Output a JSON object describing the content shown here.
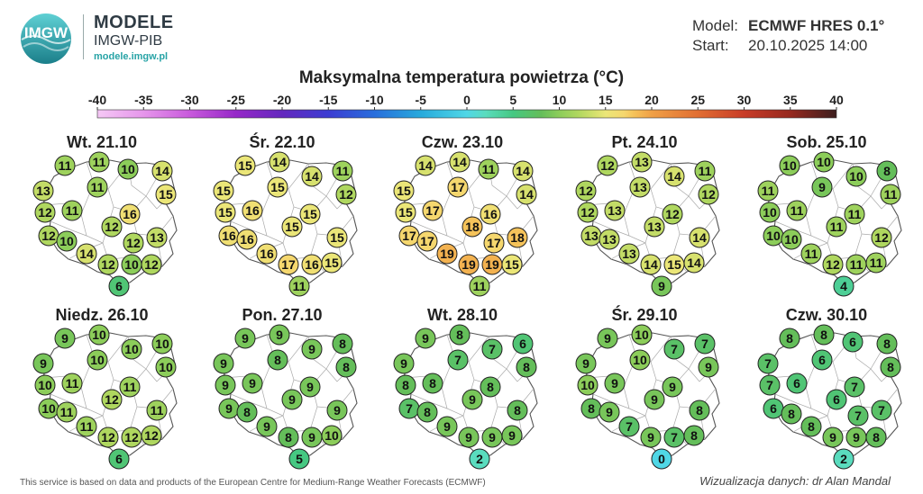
{
  "header": {
    "logo_text": "IMGW",
    "brand_title": "MODELE",
    "brand_org": "IMGW-PIB",
    "brand_url": "modele.imgw.pl",
    "model_label": "Model:",
    "model_value": "ECMWF HRES 0.1°",
    "start_label": "Start:",
    "start_value": "20.10.2025 14:00"
  },
  "title": "Maksymalna temperatura powietrza (°C)",
  "scale": {
    "ticks": [
      "-40",
      "-35",
      "-30",
      "-25",
      "-20",
      "-15",
      "-10",
      "-5",
      "0",
      "5",
      "10",
      "15",
      "20",
      "25",
      "30",
      "35",
      "40"
    ]
  },
  "panels": [
    {
      "date": "Wt. 21.10",
      "values": [
        11,
        11,
        10,
        14,
        13,
        11,
        15,
        12,
        11,
        16,
        12,
        12,
        13,
        10,
        12,
        14,
        12,
        10,
        12,
        6
      ]
    },
    {
      "date": "Śr. 22.10",
      "values": [
        15,
        14,
        11,
        15,
        15,
        14,
        12,
        15,
        16,
        15,
        16,
        16,
        15,
        15,
        16,
        17,
        16,
        15,
        11
      ]
    },
    {
      "date": "Czw. 23.10",
      "values": [
        14,
        14,
        11,
        14,
        15,
        17,
        14,
        15,
        17,
        16,
        17,
        18,
        18,
        17,
        17,
        19,
        19,
        19,
        15,
        11
      ]
    },
    {
      "date": "Pt. 24.10",
      "values": [
        12,
        13,
        11,
        12,
        13,
        14,
        12,
        12,
        13,
        12,
        13,
        13,
        13,
        14,
        13,
        14,
        15,
        14,
        9
      ]
    },
    {
      "date": "Sob. 25.10",
      "values": [
        10,
        10,
        8,
        11,
        9,
        10,
        11,
        10,
        11,
        11,
        10,
        10,
        11,
        12,
        11,
        12,
        11,
        11,
        4
      ]
    },
    {
      "date": "Niedz. 26.10",
      "values": [
        9,
        10,
        10,
        9,
        10,
        10,
        10,
        10,
        11,
        11,
        10,
        11,
        12,
        11,
        11,
        12,
        12,
        12,
        6
      ]
    },
    {
      "date": "Pon. 27.10",
      "values": [
        9,
        9,
        8,
        9,
        8,
        9,
        8,
        9,
        9,
        9,
        9,
        8,
        9,
        9,
        9,
        8,
        9,
        10,
        5
      ]
    },
    {
      "date": "Wt. 28.10",
      "values": [
        9,
        8,
        6,
        9,
        7,
        7,
        8,
        8,
        8,
        8,
        7,
        8,
        9,
        8,
        9,
        9,
        9,
        9,
        2
      ]
    },
    {
      "date": "Śr. 29.10",
      "values": [
        9,
        10,
        7,
        9,
        10,
        7,
        9,
        10,
        9,
        9,
        8,
        9,
        9,
        8,
        7,
        9,
        7,
        8,
        0
      ]
    },
    {
      "date": "Czw. 30.10",
      "values": [
        8,
        8,
        6,
        8,
        7,
        6,
        8,
        7,
        6,
        7,
        6,
        6,
        7,
        8,
        7,
        8,
        9,
        9,
        8,
        2
      ]
    }
  ],
  "footer": "This service is based on data and products of the European Centre for Medium-Range Weather Forecasts (ECMWF)",
  "credit": "Wizualizacja danych: dr Alan Mandal"
}
